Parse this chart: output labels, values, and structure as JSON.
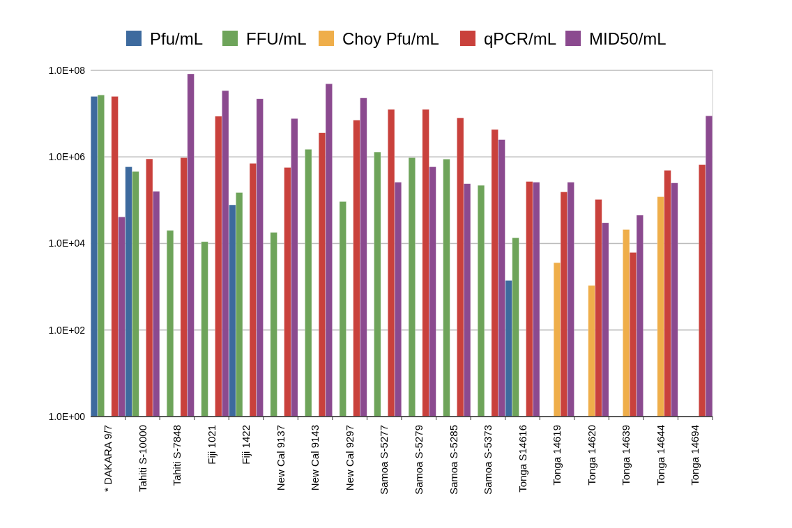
{
  "chart_data": {
    "type": "bar",
    "log": "y",
    "grid": "y",
    "legend": "top",
    "categories": [
      "* DAKARA 9/7",
      "Tahiti S-10000",
      "Tahiti S-7848",
      "Fiji 1021",
      "Fiji 1422",
      "New Cal 9137",
      "New Cal 9143",
      "New Cal 9297",
      "Samoa S-5277",
      "Samoa S-5279",
      "Samoa S-5285",
      "Samoa S-5373",
      "Tonga S14616",
      "Tonga 14619",
      "Tonga 14620",
      "Tonga 14639",
      "Tonga 14644",
      "Tonga 14694"
    ],
    "series": [
      {
        "name": "Pfu/mL",
        "color": "#3d6a9e",
        "values": [
          25000000,
          590000,
          null,
          null,
          78000,
          null,
          null,
          null,
          null,
          null,
          null,
          null,
          1400,
          null,
          null,
          null,
          null,
          null
        ]
      },
      {
        "name": "FFU/mL",
        "color": "#6ea45a",
        "values": [
          27000000,
          460000,
          20000,
          11000,
          150000,
          18000,
          1500000,
          93000,
          1300000,
          960000,
          890000,
          220000,
          13500,
          null,
          null,
          null,
          null,
          null
        ]
      },
      {
        "name": "Choy Pfu/mL",
        "color": "#efae4a",
        "values": [
          null,
          null,
          null,
          null,
          null,
          null,
          null,
          null,
          null,
          null,
          null,
          null,
          null,
          3600,
          1070,
          21000,
          120000,
          null
        ]
      },
      {
        "name": "qPCR/mL",
        "color": "#c9413c",
        "values": [
          25000000,
          900000,
          960000,
          8700000,
          710000,
          570000,
          3600000,
          7100000,
          12500000,
          12500000,
          8000000,
          4300000,
          270000,
          155000,
          104000,
          6200,
          490000,
          660000
        ]
      },
      {
        "name": "MID50/mL",
        "color": "#8b4a8f",
        "values": [
          41000,
          160000,
          83000000,
          34000000,
          22000000,
          7700000,
          49000000,
          23000000,
          260000,
          590000,
          240000,
          2500000,
          260000,
          260000,
          30000,
          45000,
          250000,
          8900000
        ]
      }
    ],
    "ylim": [
      1,
      100000000
    ],
    "yticks": [
      {
        "value": 1,
        "label": "1.0E+00"
      },
      {
        "value": 100,
        "label": "1.0E+02"
      },
      {
        "value": 10000,
        "label": "1.0E+04"
      },
      {
        "value": 1000000,
        "label": "1.0E+06"
      },
      {
        "value": 100000000,
        "label": "1.0E+08"
      }
    ]
  }
}
